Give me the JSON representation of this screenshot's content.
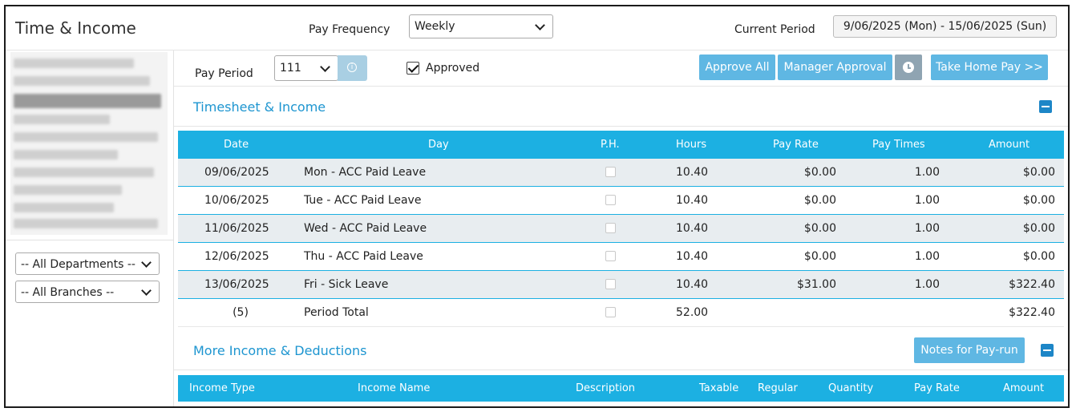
{
  "header": {
    "title": "Time & Income",
    "pay_frequency_label": "Pay Frequency",
    "pay_frequency_value": "Weekly",
    "current_period_label": "Current Period",
    "current_period_value": "9/06/2025 (Mon) - 15/06/2025 (Sun)"
  },
  "sidebar": {
    "departments_filter": "-- All Departments --",
    "branches_filter": "-- All Branches --"
  },
  "toolbar": {
    "pay_period_label": "Pay Period",
    "pay_period_value": "111",
    "approved_label": "Approved",
    "approved_checked": true,
    "approve_all_label": "Approve All",
    "manager_approval_label": "Manager Approval",
    "take_home_pay_label": "Take Home Pay >>"
  },
  "timesheet": {
    "title": "Timesheet & Income",
    "columns": [
      "Date",
      "Day",
      "P.H.",
      "Hours",
      "Pay Rate",
      "Pay Times",
      "Amount"
    ],
    "rows": [
      {
        "date": "09/06/2025",
        "day": "Mon - ACC Paid Leave",
        "hours": "10.40",
        "pay_rate": "$0.00",
        "pay_times": "1.00",
        "amount": "$0.00"
      },
      {
        "date": "10/06/2025",
        "day": "Tue - ACC Paid Leave",
        "hours": "10.40",
        "pay_rate": "$0.00",
        "pay_times": "1.00",
        "amount": "$0.00"
      },
      {
        "date": "11/06/2025",
        "day": "Wed - ACC Paid Leave",
        "hours": "10.40",
        "pay_rate": "$0.00",
        "pay_times": "1.00",
        "amount": "$0.00"
      },
      {
        "date": "12/06/2025",
        "day": "Thu - ACC Paid Leave",
        "hours": "10.40",
        "pay_rate": "$0.00",
        "pay_times": "1.00",
        "amount": "$0.00"
      },
      {
        "date": "13/06/2025",
        "day": "Fri - Sick Leave",
        "hours": "10.40",
        "pay_rate": "$31.00",
        "pay_times": "1.00",
        "amount": "$322.40"
      }
    ],
    "total": {
      "date": "(5)",
      "day": "Period Total",
      "hours": "52.00",
      "amount": "$322.40"
    }
  },
  "more_income": {
    "title": "More Income & Deductions",
    "notes_button_label": "Notes for Pay-run",
    "columns": [
      "Income Type",
      "Income Name",
      "Description",
      "Taxable",
      "Regular",
      "Quantity",
      "Pay Rate",
      "Amount"
    ]
  },
  "colors": {
    "accent": "#1cb0e2",
    "button": "#5fb7e3",
    "section_title": "#1d95d0",
    "alt_row": "#e8edf0"
  }
}
